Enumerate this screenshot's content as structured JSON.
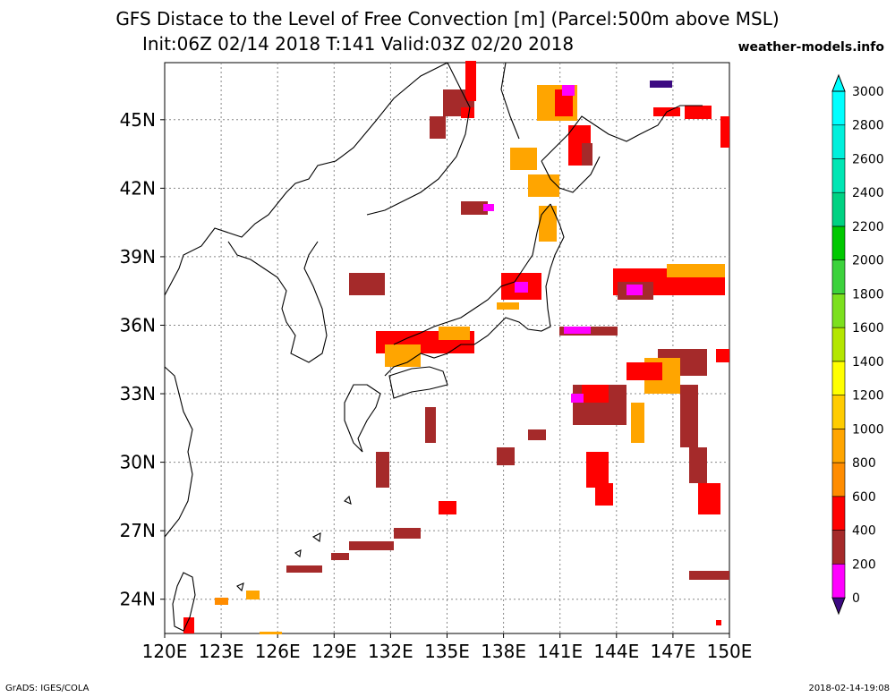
{
  "header": {
    "title": "GFS Distace to the Level of Free Convection [m] (Parcel:500m above MSL)",
    "subtitle": "Init:06Z 02/14 2018 T:141 Valid:03Z 02/20 2018",
    "site": "weather-models.info"
  },
  "footer": {
    "left": "GrADS: IGES/COLA",
    "right": "2018-02-14-19:08"
  },
  "map": {
    "lon_range": [
      120,
      150
    ],
    "lat_range": [
      22.5,
      47.5
    ],
    "lon_ticks": [
      "120E",
      "123E",
      "126E",
      "129E",
      "132E",
      "135E",
      "138E",
      "141E",
      "144E",
      "147E",
      "150E"
    ],
    "lat_ticks": [
      "24N",
      "27N",
      "30N",
      "33N",
      "36N",
      "39N",
      "42N",
      "45N"
    ],
    "grid": true
  },
  "colorbar": {
    "labels": [
      "0",
      "200",
      "400",
      "600",
      "800",
      "1000",
      "1200",
      "1400",
      "1600",
      "1800",
      "2000",
      "2200",
      "2400",
      "2600",
      "2800",
      "3000"
    ],
    "colors": [
      "#3c0a82",
      "#ff00ff",
      "#a52a2a",
      "#ff0000",
      "#ff8c00",
      "#ffa500",
      "#ffcc00",
      "#ffff00",
      "#b4e600",
      "#7ce01e",
      "#3cd23c",
      "#00c800",
      "#00d282",
      "#00e6b4",
      "#00f0dc",
      "#00ffff"
    ]
  }
}
